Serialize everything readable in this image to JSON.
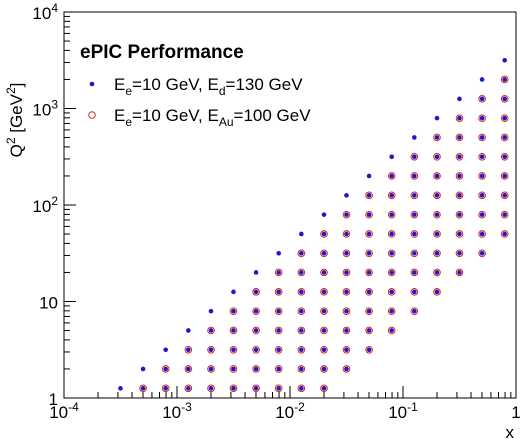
{
  "chart_data": {
    "type": "scatter",
    "title": "ePIC Performance",
    "xlabel": "x",
    "ylabel": {
      "main": "Q",
      "sup": "2",
      "unit_open": " [GeV",
      "unit_sup": "2",
      "unit_close": "]"
    },
    "x_scale": "log",
    "y_scale": "log",
    "xlim": [
      0.0001,
      1
    ],
    "ylim": [
      1,
      10000
    ],
    "grid": false,
    "legend_position": "top-left",
    "x_ticks": [
      {
        "value": 0.0001,
        "base": "10",
        "exp": "-4"
      },
      {
        "value": 0.001,
        "base": "10",
        "exp": "-3"
      },
      {
        "value": 0.01,
        "base": "10",
        "exp": "-2"
      },
      {
        "value": 0.1,
        "base": "10",
        "exp": "-1"
      },
      {
        "value": 1,
        "base": "1",
        "exp": ""
      }
    ],
    "y_ticks": [
      {
        "value": 1,
        "base": "1",
        "exp": ""
      },
      {
        "value": 10,
        "base": "10",
        "exp": ""
      },
      {
        "value": 100,
        "base": "10",
        "exp": "2"
      },
      {
        "value": 1000,
        "base": "10",
        "exp": "3"
      },
      {
        "value": 10000,
        "base": "10",
        "exp": "4"
      }
    ],
    "x_bins": [
      0.000316,
      0.000501,
      0.000794,
      0.00126,
      0.002,
      0.00316,
      0.00501,
      0.00794,
      0.0126,
      0.02,
      0.0316,
      0.0501,
      0.0794,
      0.126,
      0.2,
      0.316,
      0.501,
      0.794
    ],
    "q2_bins": [
      1.26,
      2,
      3.16,
      5.01,
      7.94,
      12.6,
      20,
      31.6,
      50.1,
      79.4,
      126,
      200,
      316,
      501,
      794,
      1260,
      2000,
      3160
    ],
    "series": [
      {
        "name_parts": {
          "a": "E",
          "a_sub": "e",
          "b": "=10 GeV, E",
          "b_sub": "d",
          "c": "=130 GeV"
        },
        "marker": "filled-circle",
        "color": "#1a1acc",
        "points": [
          [
            0.000316,
            1.26
          ],
          [
            0.000501,
            2
          ],
          [
            0.000794,
            3.16
          ],
          [
            0.00126,
            5.01
          ],
          [
            0.002,
            7.94
          ],
          [
            0.00316,
            12.6
          ],
          [
            0.00501,
            20
          ],
          [
            0.00794,
            31.6
          ],
          [
            0.0126,
            50.1
          ],
          [
            0.02,
            79.4
          ],
          [
            0.0316,
            126
          ],
          [
            0.0501,
            200
          ],
          [
            0.0794,
            316
          ],
          [
            0.126,
            501
          ],
          [
            0.2,
            794
          ],
          [
            0.316,
            1260
          ],
          [
            0.501,
            2000
          ],
          [
            0.794,
            3160
          ],
          [
            0.000501,
            1.26
          ],
          [
            0.000794,
            1.26
          ],
          [
            0.000794,
            2
          ],
          [
            0.00126,
            1.26
          ],
          [
            0.00126,
            2
          ],
          [
            0.00126,
            3.16
          ],
          [
            0.002,
            1.26
          ],
          [
            0.002,
            2
          ],
          [
            0.002,
            3.16
          ],
          [
            0.002,
            5.01
          ],
          [
            0.00316,
            1.26
          ],
          [
            0.00316,
            2
          ],
          [
            0.00316,
            3.16
          ],
          [
            0.00316,
            5.01
          ],
          [
            0.00316,
            7.94
          ],
          [
            0.00501,
            1.26
          ],
          [
            0.00501,
            2
          ],
          [
            0.00501,
            3.16
          ],
          [
            0.00501,
            5.01
          ],
          [
            0.00501,
            7.94
          ],
          [
            0.00501,
            12.6
          ],
          [
            0.00794,
            1.26
          ],
          [
            0.00794,
            2
          ],
          [
            0.00794,
            3.16
          ],
          [
            0.00794,
            5.01
          ],
          [
            0.00794,
            7.94
          ],
          [
            0.00794,
            12.6
          ],
          [
            0.00794,
            20
          ],
          [
            0.0126,
            1.26
          ],
          [
            0.0126,
            2
          ],
          [
            0.0126,
            3.16
          ],
          [
            0.0126,
            5.01
          ],
          [
            0.0126,
            7.94
          ],
          [
            0.0126,
            12.6
          ],
          [
            0.0126,
            20
          ],
          [
            0.0126,
            31.6
          ],
          [
            0.02,
            1.26
          ],
          [
            0.02,
            2
          ],
          [
            0.02,
            3.16
          ],
          [
            0.02,
            5.01
          ],
          [
            0.02,
            7.94
          ],
          [
            0.02,
            12.6
          ],
          [
            0.02,
            20
          ],
          [
            0.02,
            31.6
          ],
          [
            0.02,
            50.1
          ],
          [
            0.0316,
            2
          ],
          [
            0.0316,
            3.16
          ],
          [
            0.0316,
            5.01
          ],
          [
            0.0316,
            7.94
          ],
          [
            0.0316,
            12.6
          ],
          [
            0.0316,
            20
          ],
          [
            0.0316,
            31.6
          ],
          [
            0.0316,
            50.1
          ],
          [
            0.0316,
            79.4
          ],
          [
            0.0501,
            3.16
          ],
          [
            0.0501,
            5.01
          ],
          [
            0.0501,
            7.94
          ],
          [
            0.0501,
            12.6
          ],
          [
            0.0501,
            20
          ],
          [
            0.0501,
            31.6
          ],
          [
            0.0501,
            50.1
          ],
          [
            0.0501,
            79.4
          ],
          [
            0.0501,
            126
          ],
          [
            0.0794,
            5.01
          ],
          [
            0.0794,
            7.94
          ],
          [
            0.0794,
            12.6
          ],
          [
            0.0794,
            20
          ],
          [
            0.0794,
            31.6
          ],
          [
            0.0794,
            50.1
          ],
          [
            0.0794,
            79.4
          ],
          [
            0.0794,
            126
          ],
          [
            0.0794,
            200
          ],
          [
            0.126,
            7.94
          ],
          [
            0.126,
            12.6
          ],
          [
            0.126,
            20
          ],
          [
            0.126,
            31.6
          ],
          [
            0.126,
            50.1
          ],
          [
            0.126,
            79.4
          ],
          [
            0.126,
            126
          ],
          [
            0.126,
            200
          ],
          [
            0.126,
            316
          ],
          [
            0.2,
            12.6
          ],
          [
            0.2,
            20
          ],
          [
            0.2,
            31.6
          ],
          [
            0.2,
            50.1
          ],
          [
            0.2,
            79.4
          ],
          [
            0.2,
            126
          ],
          [
            0.2,
            200
          ],
          [
            0.2,
            316
          ],
          [
            0.2,
            501
          ],
          [
            0.316,
            20
          ],
          [
            0.316,
            31.6
          ],
          [
            0.316,
            50.1
          ],
          [
            0.316,
            79.4
          ],
          [
            0.316,
            126
          ],
          [
            0.316,
            200
          ],
          [
            0.316,
            316
          ],
          [
            0.316,
            501
          ],
          [
            0.316,
            794
          ],
          [
            0.501,
            31.6
          ],
          [
            0.501,
            50.1
          ],
          [
            0.501,
            79.4
          ],
          [
            0.501,
            126
          ],
          [
            0.501,
            200
          ],
          [
            0.501,
            316
          ],
          [
            0.501,
            501
          ],
          [
            0.501,
            794
          ],
          [
            0.501,
            1260
          ],
          [
            0.794,
            50.1
          ],
          [
            0.794,
            79.4
          ],
          [
            0.794,
            126
          ],
          [
            0.794,
            200
          ],
          [
            0.794,
            316
          ],
          [
            0.794,
            501
          ],
          [
            0.794,
            794
          ],
          [
            0.794,
            1260
          ],
          [
            0.794,
            2000
          ]
        ]
      },
      {
        "name_parts": {
          "a": "E",
          "a_sub": "e",
          "b": "=10 GeV, E",
          "b_sub": "Au",
          "c": "=100 GeV"
        },
        "marker": "open-circle",
        "color": "#d9261c",
        "points": [
          [
            0.000501,
            1.26
          ],
          [
            0.000794,
            1.26
          ],
          [
            0.000794,
            2
          ],
          [
            0.00126,
            1.26
          ],
          [
            0.00126,
            2
          ],
          [
            0.00126,
            3.16
          ],
          [
            0.002,
            1.26
          ],
          [
            0.002,
            2
          ],
          [
            0.002,
            3.16
          ],
          [
            0.002,
            5.01
          ],
          [
            0.00316,
            1.26
          ],
          [
            0.00316,
            2
          ],
          [
            0.00316,
            3.16
          ],
          [
            0.00316,
            5.01
          ],
          [
            0.00316,
            7.94
          ],
          [
            0.00501,
            1.26
          ],
          [
            0.00501,
            2
          ],
          [
            0.00501,
            3.16
          ],
          [
            0.00501,
            5.01
          ],
          [
            0.00501,
            7.94
          ],
          [
            0.00501,
            12.6
          ],
          [
            0.00794,
            1.26
          ],
          [
            0.00794,
            2
          ],
          [
            0.00794,
            3.16
          ],
          [
            0.00794,
            5.01
          ],
          [
            0.00794,
            7.94
          ],
          [
            0.00794,
            12.6
          ],
          [
            0.00794,
            20
          ],
          [
            0.0126,
            1.26
          ],
          [
            0.0126,
            2
          ],
          [
            0.0126,
            3.16
          ],
          [
            0.0126,
            5.01
          ],
          [
            0.0126,
            7.94
          ],
          [
            0.0126,
            12.6
          ],
          [
            0.0126,
            20
          ],
          [
            0.0126,
            31.6
          ],
          [
            0.02,
            1.26
          ],
          [
            0.02,
            2
          ],
          [
            0.02,
            3.16
          ],
          [
            0.02,
            5.01
          ],
          [
            0.02,
            7.94
          ],
          [
            0.02,
            12.6
          ],
          [
            0.02,
            20
          ],
          [
            0.02,
            31.6
          ],
          [
            0.02,
            50.1
          ],
          [
            0.0316,
            2
          ],
          [
            0.0316,
            3.16
          ],
          [
            0.0316,
            5.01
          ],
          [
            0.0316,
            7.94
          ],
          [
            0.0316,
            12.6
          ],
          [
            0.0316,
            20
          ],
          [
            0.0316,
            31.6
          ],
          [
            0.0316,
            50.1
          ],
          [
            0.0316,
            79.4
          ],
          [
            0.0501,
            3.16
          ],
          [
            0.0501,
            5.01
          ],
          [
            0.0501,
            7.94
          ],
          [
            0.0501,
            12.6
          ],
          [
            0.0501,
            20
          ],
          [
            0.0501,
            31.6
          ],
          [
            0.0501,
            50.1
          ],
          [
            0.0501,
            79.4
          ],
          [
            0.0501,
            126
          ],
          [
            0.0794,
            5.01
          ],
          [
            0.0794,
            7.94
          ],
          [
            0.0794,
            12.6
          ],
          [
            0.0794,
            20
          ],
          [
            0.0794,
            31.6
          ],
          [
            0.0794,
            50.1
          ],
          [
            0.0794,
            79.4
          ],
          [
            0.0794,
            126
          ],
          [
            0.0794,
            200
          ],
          [
            0.126,
            7.94
          ],
          [
            0.126,
            12.6
          ],
          [
            0.126,
            20
          ],
          [
            0.126,
            31.6
          ],
          [
            0.126,
            50.1
          ],
          [
            0.126,
            79.4
          ],
          [
            0.126,
            126
          ],
          [
            0.126,
            200
          ],
          [
            0.126,
            316
          ],
          [
            0.2,
            12.6
          ],
          [
            0.2,
            20
          ],
          [
            0.2,
            31.6
          ],
          [
            0.2,
            50.1
          ],
          [
            0.2,
            79.4
          ],
          [
            0.2,
            126
          ],
          [
            0.2,
            200
          ],
          [
            0.2,
            316
          ],
          [
            0.2,
            501
          ],
          [
            0.316,
            20
          ],
          [
            0.316,
            31.6
          ],
          [
            0.316,
            50.1
          ],
          [
            0.316,
            79.4
          ],
          [
            0.316,
            126
          ],
          [
            0.316,
            200
          ],
          [
            0.316,
            316
          ],
          [
            0.316,
            501
          ],
          [
            0.316,
            794
          ],
          [
            0.501,
            31.6
          ],
          [
            0.501,
            50.1
          ],
          [
            0.501,
            79.4
          ],
          [
            0.501,
            126
          ],
          [
            0.501,
            200
          ],
          [
            0.501,
            316
          ],
          [
            0.501,
            501
          ],
          [
            0.501,
            794
          ],
          [
            0.501,
            1260
          ],
          [
            0.794,
            50.1
          ],
          [
            0.794,
            79.4
          ],
          [
            0.794,
            126
          ],
          [
            0.794,
            200
          ],
          [
            0.794,
            316
          ],
          [
            0.794,
            501
          ],
          [
            0.794,
            794
          ],
          [
            0.794,
            1260
          ],
          [
            0.794,
            2000
          ]
        ]
      }
    ]
  }
}
